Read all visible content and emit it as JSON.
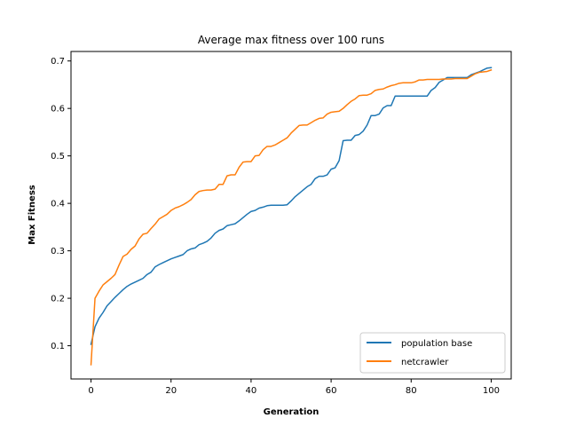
{
  "chart_data": {
    "type": "line",
    "title": "Average max fitness over 100 runs",
    "xlabel": "Generation",
    "ylabel": "Max Fitness",
    "xlim": [
      -5,
      105
    ],
    "ylim": [
      0.03,
      0.72
    ],
    "xticks": [
      0,
      20,
      40,
      60,
      80,
      100
    ],
    "yticks": [
      0.1,
      0.2,
      0.3,
      0.4,
      0.5,
      0.6,
      0.7
    ],
    "grid": false,
    "legend_position": "lower right",
    "series": [
      {
        "name": "population base",
        "color": "#1f77b4",
        "x": [
          0,
          1,
          2,
          3,
          4,
          5,
          6,
          7,
          8,
          9,
          10,
          11,
          12,
          13,
          14,
          15,
          16,
          17,
          18,
          19,
          20,
          21,
          22,
          23,
          24,
          25,
          26,
          27,
          28,
          29,
          30,
          31,
          32,
          33,
          34,
          35,
          36,
          37,
          38,
          39,
          40,
          41,
          42,
          43,
          44,
          45,
          46,
          47,
          48,
          49,
          50,
          51,
          52,
          53,
          54,
          55,
          56,
          57,
          58,
          59,
          60,
          61,
          62,
          63,
          64,
          65,
          66,
          67,
          68,
          69,
          70,
          71,
          72,
          73,
          74,
          75,
          76,
          77,
          78,
          79,
          80,
          81,
          82,
          83,
          84,
          85,
          86,
          87,
          88,
          89,
          90,
          91,
          92,
          93,
          94,
          95,
          96,
          97,
          98,
          99,
          100
        ],
        "y": [
          0.103,
          0.14,
          0.158,
          0.17,
          0.184,
          0.193,
          0.202,
          0.21,
          0.218,
          0.225,
          0.23,
          0.234,
          0.238,
          0.242,
          0.25,
          0.255,
          0.266,
          0.271,
          0.275,
          0.279,
          0.283,
          0.286,
          0.289,
          0.292,
          0.3,
          0.304,
          0.306,
          0.313,
          0.316,
          0.32,
          0.327,
          0.337,
          0.343,
          0.346,
          0.353,
          0.355,
          0.357,
          0.363,
          0.37,
          0.377,
          0.383,
          0.385,
          0.39,
          0.392,
          0.395,
          0.396,
          0.396,
          0.396,
          0.396,
          0.397,
          0.405,
          0.414,
          0.421,
          0.428,
          0.435,
          0.44,
          0.452,
          0.457,
          0.457,
          0.46,
          0.472,
          0.475,
          0.49,
          0.532,
          0.533,
          0.533,
          0.543,
          0.545,
          0.552,
          0.565,
          0.585,
          0.585,
          0.588,
          0.601,
          0.606,
          0.606,
          0.626,
          0.626,
          0.626,
          0.626,
          0.626,
          0.626,
          0.626,
          0.626,
          0.626,
          0.638,
          0.644,
          0.655,
          0.66,
          0.665,
          0.665,
          0.665,
          0.665,
          0.665,
          0.665,
          0.671,
          0.674,
          0.677,
          0.681,
          0.685,
          0.686
        ]
      },
      {
        "name": "netcrawler",
        "color": "#ff7f0e",
        "x": [
          0,
          1,
          2,
          3,
          4,
          5,
          6,
          7,
          8,
          9,
          10,
          11,
          12,
          13,
          14,
          15,
          16,
          17,
          18,
          19,
          20,
          21,
          22,
          23,
          24,
          25,
          26,
          27,
          28,
          29,
          30,
          31,
          32,
          33,
          34,
          35,
          36,
          37,
          38,
          39,
          40,
          41,
          42,
          43,
          44,
          45,
          46,
          47,
          48,
          49,
          50,
          51,
          52,
          53,
          54,
          55,
          56,
          57,
          58,
          59,
          60,
          61,
          62,
          63,
          64,
          65,
          66,
          67,
          68,
          69,
          70,
          71,
          72,
          73,
          74,
          75,
          76,
          77,
          78,
          79,
          80,
          81,
          82,
          83,
          84,
          85,
          86,
          87,
          88,
          89,
          90,
          91,
          92,
          93,
          94,
          95,
          96,
          97,
          98,
          99,
          100
        ],
        "y": [
          0.06,
          0.2,
          0.215,
          0.228,
          0.235,
          0.242,
          0.25,
          0.27,
          0.288,
          0.293,
          0.303,
          0.31,
          0.325,
          0.335,
          0.337,
          0.347,
          0.356,
          0.367,
          0.372,
          0.377,
          0.385,
          0.39,
          0.393,
          0.397,
          0.402,
          0.408,
          0.418,
          0.425,
          0.427,
          0.428,
          0.428,
          0.43,
          0.44,
          0.44,
          0.458,
          0.46,
          0.46,
          0.476,
          0.487,
          0.488,
          0.488,
          0.5,
          0.501,
          0.513,
          0.52,
          0.52,
          0.523,
          0.528,
          0.533,
          0.538,
          0.548,
          0.556,
          0.564,
          0.565,
          0.565,
          0.57,
          0.575,
          0.579,
          0.58,
          0.588,
          0.592,
          0.593,
          0.594,
          0.6,
          0.608,
          0.615,
          0.62,
          0.627,
          0.628,
          0.628,
          0.631,
          0.638,
          0.64,
          0.641,
          0.645,
          0.648,
          0.65,
          0.653,
          0.654,
          0.654,
          0.654,
          0.656,
          0.66,
          0.66,
          0.661,
          0.661,
          0.661,
          0.661,
          0.662,
          0.662,
          0.662,
          0.663,
          0.663,
          0.663,
          0.663,
          0.668,
          0.673,
          0.676,
          0.677,
          0.678,
          0.681
        ]
      }
    ]
  }
}
